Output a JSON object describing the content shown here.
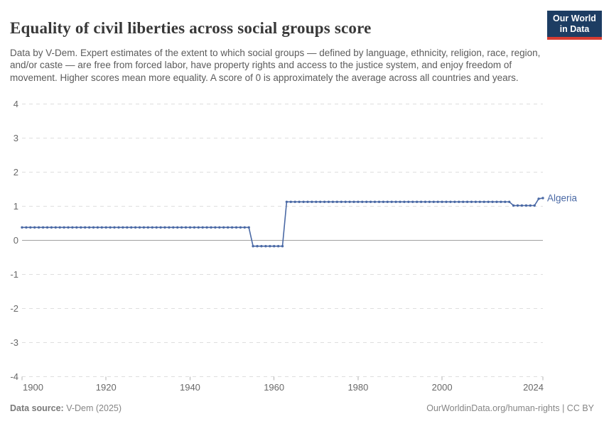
{
  "header": {
    "title": "Equality of civil liberties across social groups score",
    "subtitle": "Data by V-Dem. Expert estimates of the extent to which social groups — defined by language, ethnicity, religion, race, region, and/or caste — are free from forced labor, have property rights and access to the justice system, and enjoy freedom of movement. Higher scores mean more equality. A score of 0 is approximately the average across all countries and years."
  },
  "logo": {
    "line1": "Our World",
    "line2": "in Data",
    "bg_color": "#1d3d63",
    "accent_color": "#d73c32"
  },
  "chart_data": {
    "type": "line",
    "title": "Equality of civil liberties across social groups score",
    "entity_label": "Algeria",
    "line_color": "#4a69a5",
    "grid": true,
    "xlabel": "",
    "ylabel": "",
    "x_axis": {
      "min": 1900,
      "max": 2024,
      "ticks": [
        1900,
        1920,
        1940,
        1960,
        1980,
        2000,
        2024
      ]
    },
    "y_axis": {
      "min": -4,
      "max": 4,
      "ticks": [
        4,
        3,
        2,
        1,
        0,
        -1,
        -2,
        -3,
        -4
      ]
    },
    "series": [
      {
        "name": "Algeria",
        "segments": [
          {
            "from_year": 1900,
            "to_year": 1954,
            "value": 0.38
          },
          {
            "from_year": 1955,
            "to_year": 1962,
            "value": -0.17
          },
          {
            "from_year": 1963,
            "to_year": 2016,
            "value": 1.13
          },
          {
            "from_year": 2017,
            "to_year": 2022,
            "value": 1.02
          },
          {
            "from_year": 2023,
            "to_year": 2023,
            "value": 1.22
          },
          {
            "from_year": 2024,
            "to_year": 2024,
            "value": 1.24
          }
        ]
      }
    ]
  },
  "footer": {
    "datasource_label": "Data source:",
    "datasource_value": " V-Dem (2025)",
    "attribution": "OurWorldinData.org/human-rights | CC BY"
  },
  "colors": {
    "grid_line": "#dedede",
    "zero_line": "#a0a0a0",
    "axis_text": "#696969",
    "tick_mark": "#b3b3b3"
  }
}
